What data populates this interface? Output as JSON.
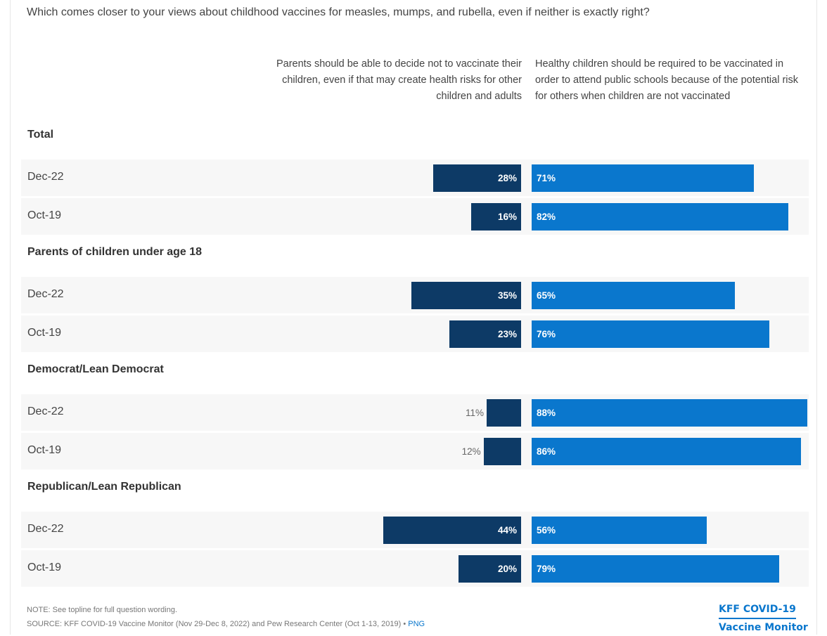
{
  "question": "Which comes closer to your views about childhood vaccines for measles, mumps, and rubella, even if neither is exactly right?",
  "columns": {
    "left": "Parents should be able to decide not to vaccinate their children, even if that may create health risks for other children and adults",
    "right": "Healthy children should be required to be vaccinated in order to attend public schools because of the potential risk for others when children are not vaccinated"
  },
  "colors": {
    "left": "#0d3a66",
    "right": "#0a77cd"
  },
  "chart_data": {
    "type": "bar",
    "orientation": "horizontal-diverging",
    "series": [
      {
        "name": "Parents should be able to decide not to vaccinate their children, even if that may create health risks for other children and adults",
        "color": "#0d3a66"
      },
      {
        "name": "Healthy children should be required to be vaccinated in order to attend public schools because of the potential risk for others when children are not vaccinated",
        "color": "#0a77cd"
      }
    ],
    "groups": [
      {
        "label": "Total",
        "rows": [
          {
            "label": "Dec-22",
            "left": 28,
            "right": 71
          },
          {
            "label": "Oct-19",
            "left": 16,
            "right": 82
          }
        ]
      },
      {
        "label": "Parents of children under age 18",
        "rows": [
          {
            "label": "Dec-22",
            "left": 35,
            "right": 65
          },
          {
            "label": "Oct-19",
            "left": 23,
            "right": 76
          }
        ]
      },
      {
        "label": "Democrat/Lean Democrat",
        "rows": [
          {
            "label": "Dec-22",
            "left": 11,
            "right": 88
          },
          {
            "label": "Oct-19",
            "left": 12,
            "right": 86
          }
        ]
      },
      {
        "label": "Republican/Lean Republican",
        "rows": [
          {
            "label": "Dec-22",
            "left": 44,
            "right": 56
          },
          {
            "label": "Oct-19",
            "left": 20,
            "right": 79
          }
        ]
      }
    ],
    "unit": "%"
  },
  "footer": {
    "note": "NOTE: See topline for full question wording.",
    "source": "SOURCE: KFF COVID-19 Vaccine Monitor (Nov 29-Dec 8, 2022) and Pew Research Center (Oct 1-13, 2019) •",
    "png_link": "PNG",
    "brand_line1": "KFF COVID-19",
    "brand_line2": "Vaccine Monitor"
  }
}
